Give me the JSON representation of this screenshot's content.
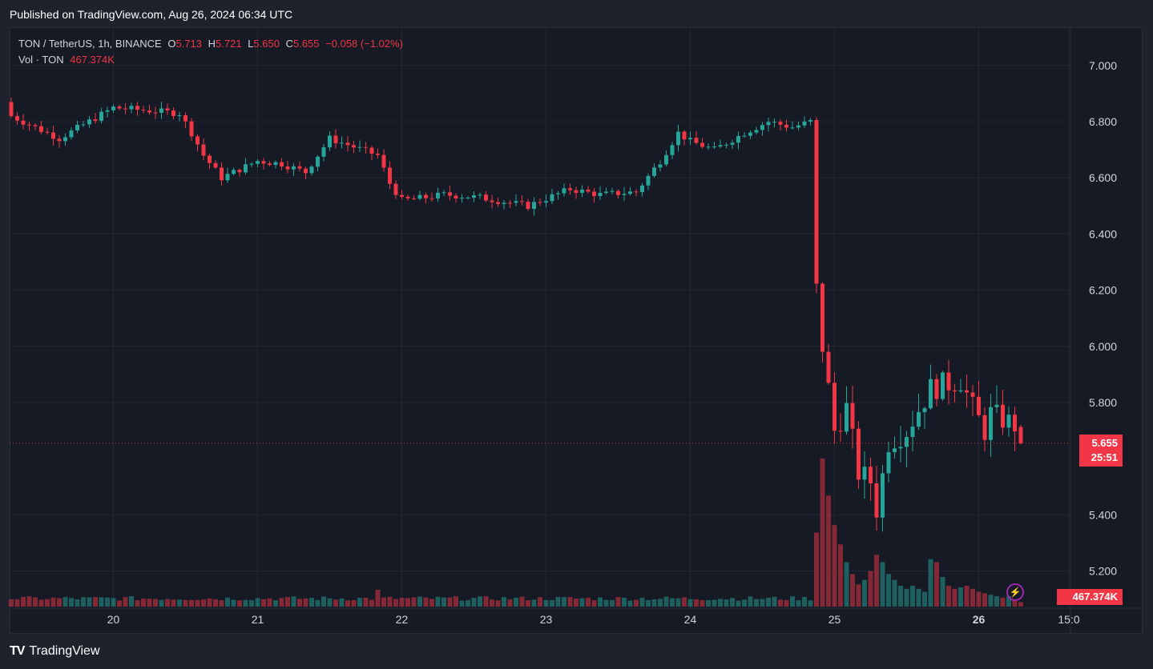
{
  "header": {
    "published": "Published on TradingView.com, Aug 26, 2024 06:34 UTC"
  },
  "legend": {
    "symbol": "TON / TetherUS, 1h, BINANCE",
    "open_label": "O",
    "open": "5.713",
    "high_label": "H",
    "high": "5.721",
    "low_label": "L",
    "low": "5.650",
    "close_label": "C",
    "close": "5.655",
    "change": "−0.058 (−1.02%)",
    "volume_label": "Vol · TON",
    "volume": "467.374K"
  },
  "price_badge": {
    "price": "5.655",
    "countdown": "25:51"
  },
  "volume_badge": "467.374K",
  "footer": {
    "brand": "TradingView"
  },
  "colors": {
    "up": "#26a69a",
    "down": "#f23645",
    "bg": "#161a25",
    "grid": "#232733"
  },
  "chart_data": {
    "type": "candlestick",
    "ylim": [
      5.06,
      7.12
    ],
    "y_ticks": [
      "7.000",
      "6.800",
      "6.600",
      "6.400",
      "6.200",
      "6.000",
      "5.800",
      "5.400",
      "5.200"
    ],
    "x_ticks": [
      {
        "label": "20",
        "hour": 17
      },
      {
        "label": "21",
        "hour": 41
      },
      {
        "label": "22",
        "hour": 65
      },
      {
        "label": "23",
        "hour": 89
      },
      {
        "label": "24",
        "hour": 113
      },
      {
        "label": "25",
        "hour": 137
      },
      {
        "label": "26",
        "hour": 161
      },
      {
        "label": "15:0",
        "hour": 176
      }
    ],
    "anchors": [
      [
        0,
        6.82
      ],
      [
        8,
        6.74
      ],
      [
        17,
        6.85
      ],
      [
        28,
        6.83
      ],
      [
        30,
        6.76
      ],
      [
        32,
        6.68
      ],
      [
        35,
        6.6
      ],
      [
        41,
        6.66
      ],
      [
        45,
        6.65
      ],
      [
        49,
        6.62
      ],
      [
        53,
        6.74
      ],
      [
        57,
        6.71
      ],
      [
        61,
        6.68
      ],
      [
        63,
        6.58
      ],
      [
        65,
        6.52
      ],
      [
        69,
        6.53
      ],
      [
        72,
        6.54
      ],
      [
        78,
        6.53
      ],
      [
        86,
        6.5
      ],
      [
        93,
        6.56
      ],
      [
        98,
        6.54
      ],
      [
        104,
        6.55
      ],
      [
        108,
        6.66
      ],
      [
        111,
        6.76
      ],
      [
        113,
        6.73
      ],
      [
        117,
        6.7
      ],
      [
        122,
        6.76
      ],
      [
        126,
        6.8
      ],
      [
        130,
        6.78
      ],
      [
        133,
        6.8
      ],
      [
        134,
        6.2
      ],
      [
        135,
        6.0
      ],
      [
        137,
        5.7
      ],
      [
        139,
        5.78
      ],
      [
        141,
        5.55
      ],
      [
        143,
        5.52
      ],
      [
        144,
        5.42
      ],
      [
        146,
        5.66
      ],
      [
        149,
        5.7
      ],
      [
        153,
        5.85
      ],
      [
        158,
        5.88
      ],
      [
        160,
        5.78
      ],
      [
        162,
        5.7
      ],
      [
        163,
        5.76
      ],
      [
        167,
        5.72
      ],
      [
        168,
        5.655
      ]
    ],
    "volume_spikes": {
      "134": 0.5,
      "135": 1.0,
      "136": 0.75,
      "137": 0.55,
      "138": 0.42,
      "139": 0.3,
      "140": 0.22,
      "141": 0.15,
      "142": 0.18,
      "143": 0.24,
      "144": 0.35,
      "145": 0.3,
      "146": 0.22,
      "147": 0.18,
      "148": 0.14,
      "149": 0.12,
      "150": 0.14,
      "151": 0.12,
      "152": 0.1,
      "153": 0.32,
      "154": 0.3,
      "155": 0.2,
      "156": 0.14,
      "157": 0.12,
      "158": 0.13,
      "159": 0.14,
      "160": 0.12,
      "161": 0.1,
      "162": 0.09,
      "163": 0.08,
      "164": 0.07,
      "165": 0.06,
      "166": 0.07,
      "167": 0.05,
      "168": 0.03
    },
    "volume_max": 2200
  }
}
